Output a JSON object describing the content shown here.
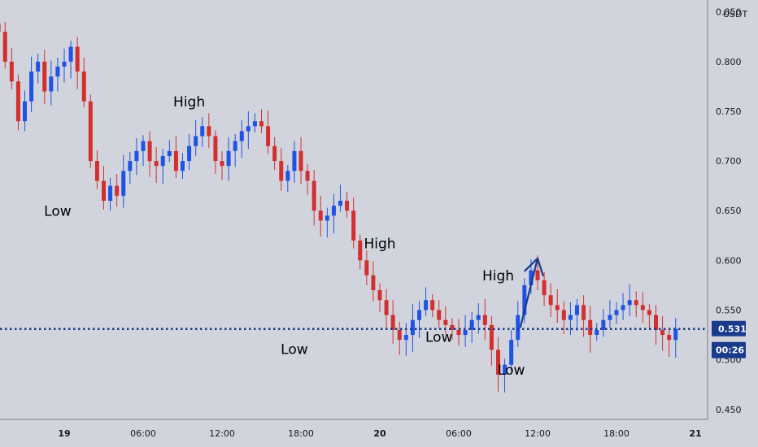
{
  "chart_data": {
    "type": "candlestick",
    "currency": "USDT",
    "ylim": [
      0.44,
      0.862
    ],
    "y_ticks": [
      "0.850",
      "0.800",
      "0.750",
      "0.700",
      "0.650",
      "0.600",
      "0.550",
      "0.500",
      "0.450"
    ],
    "x_ticks": [
      "19",
      "06:00",
      "12:00",
      "18:00",
      "20",
      "06:00",
      "12:00",
      "18:00",
      "21"
    ],
    "x_tick_hours": [
      0,
      6,
      12,
      18,
      24,
      30,
      36,
      42,
      48
    ],
    "bold_x_ticks": [
      "19",
      "20",
      "21"
    ],
    "candle_interval_minutes": 30,
    "first_candle_hour": -5,
    "current_price": "0.531",
    "current_price_value": 0.531,
    "countdown": "00:26",
    "colors": {
      "up": "#1e53e5",
      "down": "#d32f2f",
      "price_line": "#1a3a8c",
      "badge": "#1a3a8c",
      "arrow": "#1a3a8c",
      "background": "#d1d4dc"
    },
    "annotations": [
      {
        "text": "Low",
        "hour": -0.5,
        "price": 0.645
      },
      {
        "text": "High",
        "hour": 9.5,
        "price": 0.755
      },
      {
        "text": "Low",
        "hour": 17.5,
        "price": 0.506
      },
      {
        "text": "High",
        "hour": 24.0,
        "price": 0.612
      },
      {
        "text": "Low",
        "hour": 28.5,
        "price": 0.518
      },
      {
        "text": "High",
        "hour": 33.0,
        "price": 0.58
      },
      {
        "text": "Low",
        "hour": 34.0,
        "price": 0.485
      }
    ],
    "arrow": {
      "from_hour": 34.7,
      "from_price": 0.533,
      "to_hour": 36.0,
      "to_price": 0.602
    },
    "closes": [
      0.83,
      0.8,
      0.78,
      0.74,
      0.76,
      0.79,
      0.8,
      0.77,
      0.785,
      0.795,
      0.8,
      0.815,
      0.79,
      0.76,
      0.7,
      0.68,
      0.66,
      0.675,
      0.665,
      0.69,
      0.7,
      0.71,
      0.72,
      0.7,
      0.695,
      0.705,
      0.71,
      0.69,
      0.7,
      0.715,
      0.725,
      0.735,
      0.725,
      0.7,
      0.695,
      0.71,
      0.72,
      0.73,
      0.735,
      0.74,
      0.735,
      0.715,
      0.7,
      0.68,
      0.69,
      0.71,
      0.69,
      0.68,
      0.65,
      0.64,
      0.645,
      0.655,
      0.66,
      0.65,
      0.62,
      0.6,
      0.585,
      0.57,
      0.56,
      0.545,
      0.53,
      0.52,
      0.525,
      0.54,
      0.55,
      0.56,
      0.55,
      0.54,
      0.535,
      0.53,
      0.525,
      0.53,
      0.54,
      0.545,
      0.535,
      0.51,
      0.485,
      0.495,
      0.52,
      0.545,
      0.575,
      0.59,
      0.58,
      0.565,
      0.555,
      0.55,
      0.54,
      0.545,
      0.555,
      0.54,
      0.525,
      0.53,
      0.54,
      0.545,
      0.55,
      0.555,
      0.56,
      0.555,
      0.55,
      0.545,
      0.53,
      0.525,
      0.52,
      0.531
    ]
  }
}
